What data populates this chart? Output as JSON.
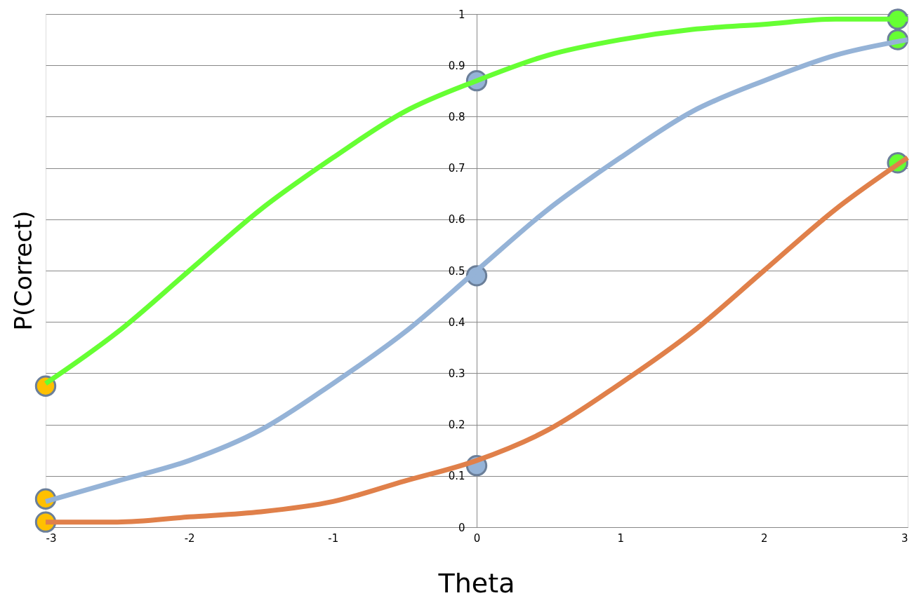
{
  "chart_data": {
    "type": "line",
    "xlabel": "Theta",
    "ylabel": "P(Correct)",
    "xlim": [
      -3,
      3
    ],
    "ylim": [
      0,
      1
    ],
    "xticks": [
      -3,
      -2,
      -1,
      0,
      1,
      2,
      3
    ],
    "yticks": [
      0,
      0.1,
      0.2,
      0.3,
      0.4,
      0.5,
      0.6,
      0.7,
      0.8,
      0.9,
      1
    ],
    "grid": "y",
    "line_style": "solid",
    "x": [
      -3,
      -2.5,
      -2,
      -1.5,
      -1,
      -0.5,
      0,
      0.5,
      1,
      1.5,
      2,
      2.5,
      3
    ],
    "series": [
      {
        "color": "#66ff33",
        "values": [
          0.28,
          0.38,
          0.5,
          0.62,
          0.72,
          0.81,
          0.87,
          0.92,
          0.95,
          0.97,
          0.98,
          0.99,
          0.99
        ]
      },
      {
        "color": "#95b3d7",
        "values": [
          0.05,
          0.09,
          0.13,
          0.19,
          0.28,
          0.38,
          0.5,
          0.62,
          0.72,
          0.81,
          0.87,
          0.92,
          0.95
        ]
      },
      {
        "color": "#e0804a",
        "values": [
          0.01,
          0.01,
          0.02,
          0.03,
          0.05,
          0.09,
          0.13,
          0.19,
          0.28,
          0.38,
          0.5,
          0.62,
          0.72
        ]
      },
      {
        "type": "scatter",
        "marker": "circle",
        "x": [
          -3,
          -3,
          -3
        ],
        "values": [
          0.275,
          0.055,
          0.01
        ],
        "color": "#ffc000"
      },
      {
        "type": "scatter",
        "marker": "circle",
        "x": [
          0,
          0,
          0
        ],
        "values": [
          0.87,
          0.49,
          0.12
        ],
        "color": "#95b3d7"
      },
      {
        "type": "scatter",
        "marker": "circle",
        "x": [
          2.93,
          2.93,
          2.93
        ],
        "values": [
          0.99,
          0.95,
          0.71
        ],
        "color": "#66ff33"
      }
    ]
  }
}
